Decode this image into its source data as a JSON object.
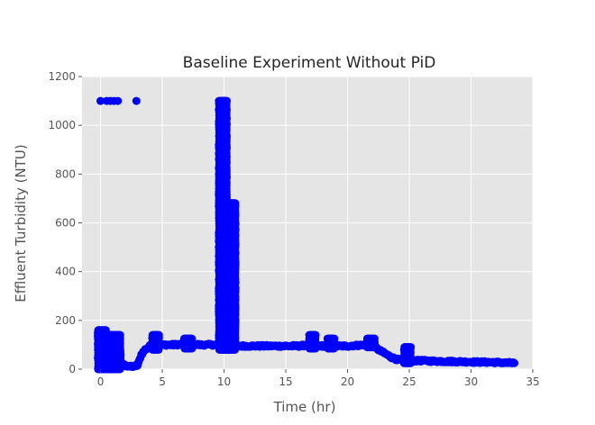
{
  "chart_data": {
    "type": "scatter",
    "title": "Baseline Experiment Without PiD",
    "xlabel": "Time (hr)",
    "ylabel": "Effluent Turbidity (NTU)",
    "xlim": [
      -1.5,
      35
    ],
    "ylim": [
      0,
      1200
    ],
    "xticks": [
      0,
      5,
      10,
      15,
      20,
      25,
      30,
      35
    ],
    "yticks": [
      0,
      200,
      400,
      600,
      800,
      1000,
      1200
    ],
    "grid": true,
    "background_color": "#e5e5e5",
    "point_color": "#0000ff",
    "isolated_points": [
      [
        0,
        1100
      ],
      [
        0.5,
        1100
      ],
      [
        0.8,
        1100
      ],
      [
        1.1,
        1100
      ],
      [
        1.4,
        1100
      ],
      [
        2.9,
        1100
      ]
    ],
    "spikes": [
      {
        "x_start": 9.6,
        "x_end": 10.2,
        "y_min": 80,
        "y_max": 1100
      },
      {
        "x_start": 10.2,
        "x_end": 10.9,
        "y_min": 80,
        "y_max": 680
      }
    ],
    "trend": [
      [
        -0.2,
        150
      ],
      [
        0,
        100
      ],
      [
        0.3,
        50
      ],
      [
        0.6,
        40
      ],
      [
        1,
        60
      ],
      [
        1.5,
        30
      ],
      [
        2,
        15
      ],
      [
        2.5,
        10
      ],
      [
        3,
        15
      ],
      [
        3.3,
        60
      ],
      [
        3.6,
        80
      ],
      [
        4,
        95
      ],
      [
        5,
        100
      ],
      [
        6,
        100
      ],
      [
        7,
        105
      ],
      [
        8,
        100
      ],
      [
        9,
        100
      ],
      [
        9.6,
        100
      ],
      [
        10.9,
        95
      ],
      [
        12,
        95
      ],
      [
        14,
        95
      ],
      [
        16,
        95
      ],
      [
        17,
        100
      ],
      [
        18,
        95
      ],
      [
        20,
        95
      ],
      [
        21.5,
        100
      ],
      [
        22,
        100
      ],
      [
        22.5,
        80
      ],
      [
        23,
        65
      ],
      [
        23.5,
        50
      ],
      [
        24,
        40
      ],
      [
        24.7,
        35
      ],
      [
        25,
        40
      ],
      [
        25.3,
        35
      ],
      [
        26,
        35
      ],
      [
        27,
        33
      ],
      [
        28,
        32
      ],
      [
        30,
        30
      ],
      [
        32,
        28
      ],
      [
        33.5,
        25
      ]
    ],
    "bursts": [
      {
        "x_start": -0.2,
        "x_end": 0.4,
        "y_min": 0,
        "y_max": 160
      },
      {
        "x_start": 0.5,
        "x_end": 1.6,
        "y_min": 0,
        "y_max": 140
      },
      {
        "x_start": 4.2,
        "x_end": 4.7,
        "y_min": 80,
        "y_max": 140
      },
      {
        "x_start": 6.8,
        "x_end": 7.4,
        "y_min": 85,
        "y_max": 125
      },
      {
        "x_start": 16.9,
        "x_end": 17.4,
        "y_min": 85,
        "y_max": 140
      },
      {
        "x_start": 18.4,
        "x_end": 18.9,
        "y_min": 85,
        "y_max": 125
      },
      {
        "x_start": 21.6,
        "x_end": 22.2,
        "y_min": 90,
        "y_max": 125
      },
      {
        "x_start": 24.6,
        "x_end": 25.1,
        "y_min": 25,
        "y_max": 90
      }
    ]
  }
}
